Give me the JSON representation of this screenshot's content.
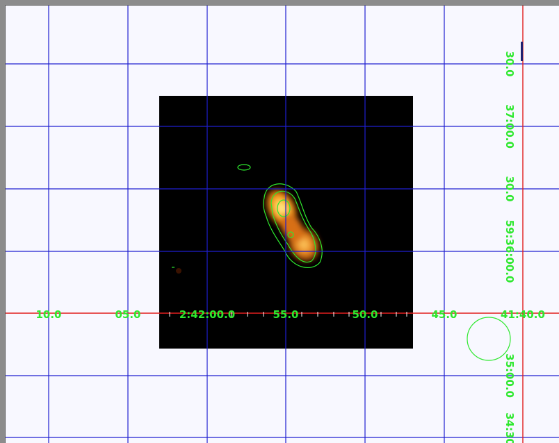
{
  "colors": {
    "background": "#f8f8ff",
    "frame": "#8c8c8c",
    "grid": "#1f1fd0",
    "axis": "#e11f1f",
    "contour": "#2ee82e",
    "label": "#2ee82e",
    "image_bg": "#000000",
    "source_core": "#ffe08a",
    "source_outer": "#ff7a00"
  },
  "coordinate_labels": {
    "ra": [
      "10.0",
      "05.0",
      "2:42:00.0",
      "55.0",
      "50.0",
      "45.0",
      "41:40.0"
    ],
    "dec": [
      "30.0",
      "37:00.0",
      "30.0",
      "59:36:00.0",
      "35:00.0",
      "34:30"
    ]
  },
  "icons": {
    "beam": "beam-circle-icon"
  }
}
